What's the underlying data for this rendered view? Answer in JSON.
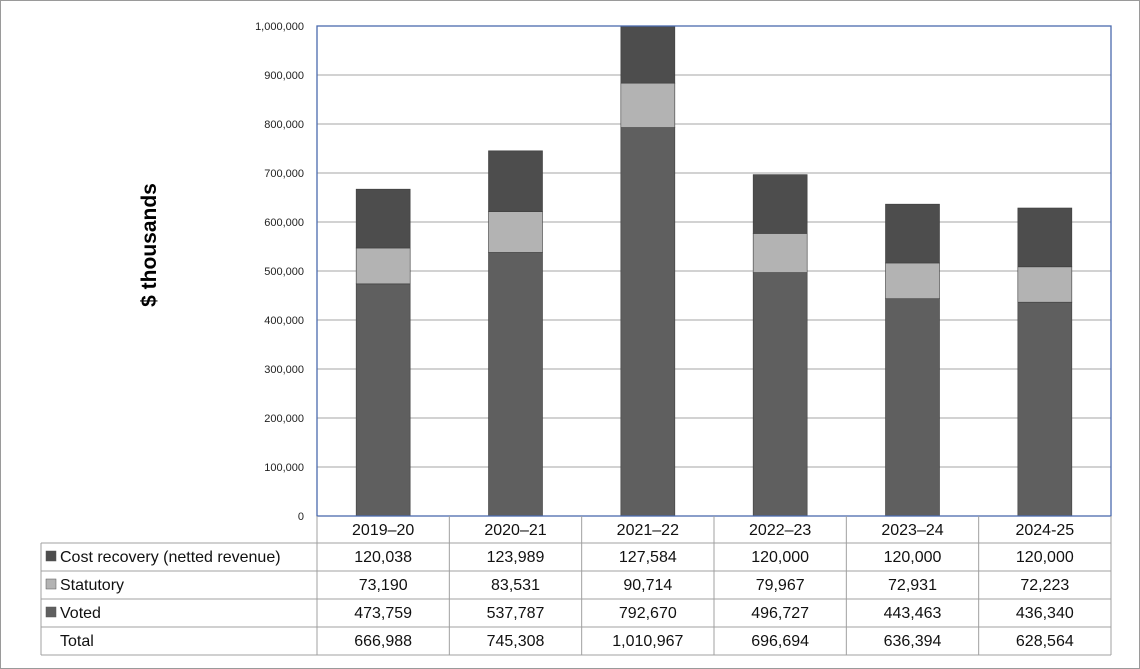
{
  "chart_data": {
    "type": "bar",
    "stacked": true,
    "title": "",
    "xlabel": "",
    "ylabel": "$ thousands",
    "ylim": [
      0,
      1000000
    ],
    "yticks": [
      "0",
      "100,000",
      "200,000",
      "300,000",
      "400,000",
      "500,000",
      "600,000",
      "700,000",
      "800,000",
      "900,000",
      "1,000,000"
    ],
    "grid": true,
    "legend": "data-table-left",
    "categories": [
      "2019–20",
      "2020–21",
      "2021–22",
      "2022–23",
      "2023–24",
      "2024-25"
    ],
    "series": [
      {
        "name": "Voted",
        "color": "#5f5f5f",
        "values": [
          473759,
          537787,
          792670,
          496727,
          443463,
          436340
        ],
        "labels": [
          "473,759",
          "537,787",
          "792,670",
          "496,727",
          "443,463",
          "436,340"
        ]
      },
      {
        "name": "Statutory",
        "color": "#b3b3b3",
        "values": [
          73190,
          83531,
          90714,
          79967,
          72931,
          72223
        ],
        "labels": [
          "73,190",
          "83,531",
          "90,714",
          "79,967",
          "72,931",
          "72,223"
        ]
      },
      {
        "name": "Cost recovery (netted revenue)",
        "color": "#4d4d4d",
        "values": [
          120038,
          123989,
          127584,
          120000,
          120000,
          120000
        ],
        "labels": [
          "120,038",
          "123,989",
          "127,584",
          "120,000",
          "120,000",
          "120,000"
        ]
      }
    ],
    "total": {
      "name": "Total",
      "values": [
        666988,
        745308,
        1010967,
        696694,
        636394,
        628564
      ],
      "labels": [
        "666,988",
        "745,308",
        "1,010,967",
        "696,694",
        "636,394",
        "628,564"
      ]
    },
    "colors": {
      "plot_border": "#4a6aae",
      "gridline": "#a6a6a6",
      "table_border": "#a0a0a0"
    }
  }
}
